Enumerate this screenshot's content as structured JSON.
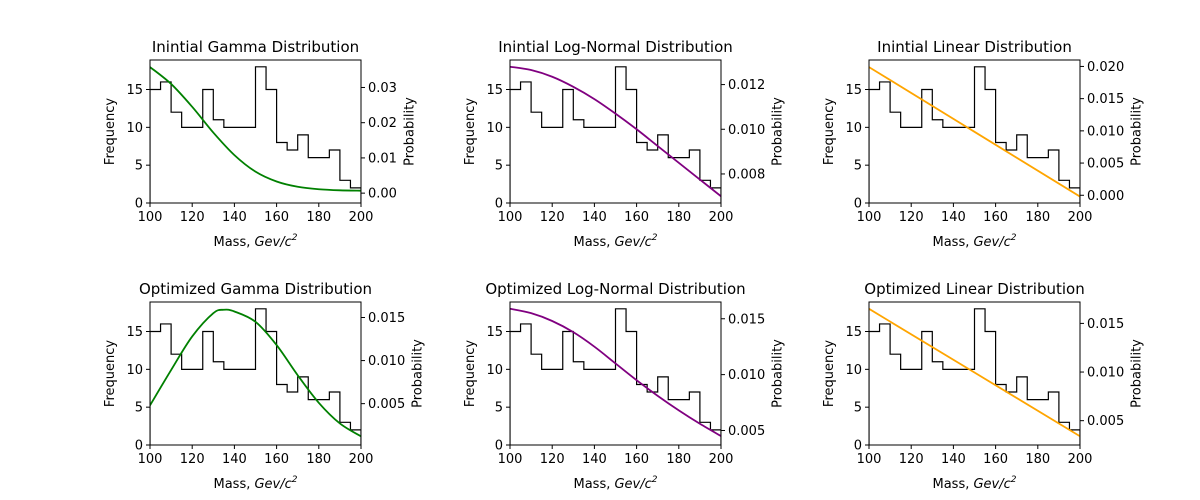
{
  "chart_data": [
    {
      "type": "histogram+line",
      "title": "Inintial Gamma Distribution",
      "xlabel": "Mass, ",
      "xlabel_unit": "Gev/c",
      "xlabel_sup": "2",
      "ylabel_left": "Frequency",
      "ylabel_right": "Probability",
      "xlim": [
        100,
        200
      ],
      "ylim_left": [
        0,
        18.9
      ],
      "ylim_right": [
        -0.0028,
        0.0378
      ],
      "xticks": [
        100,
        120,
        140,
        160,
        180,
        200
      ],
      "yticks_left": [
        0,
        5,
        10,
        15
      ],
      "yticks_right": [
        0.0,
        0.01,
        0.02,
        0.03
      ],
      "yticks_right_labels": [
        "0.00",
        "0.01",
        "0.02",
        "0.03"
      ],
      "hist": {
        "edges": [
          100,
          105,
          110,
          115,
          120,
          125,
          130,
          135,
          140,
          145,
          150,
          155,
          160,
          165,
          170,
          175,
          180,
          185,
          190,
          195,
          200
        ],
        "counts": [
          15,
          16,
          12,
          10,
          10,
          15,
          11,
          10,
          10,
          10,
          18,
          15,
          8,
          7,
          9,
          6,
          6,
          7,
          3,
          2
        ]
      },
      "line": {
        "color": "#008000",
        "x": [
          100,
          110,
          120,
          130,
          140,
          150,
          160,
          170,
          180,
          190,
          200
        ],
        "y": [
          0.0358,
          0.031,
          0.0245,
          0.0172,
          0.0108,
          0.0061,
          0.0033,
          0.0018,
          0.0011,
          0.0008,
          0.0007
        ]
      }
    },
    {
      "type": "histogram+line",
      "title": "Inintial Log-Normal Distribution",
      "xlabel": "Mass, ",
      "xlabel_unit": "Gev/c",
      "xlabel_sup": "2",
      "ylabel_left": "Frequency",
      "ylabel_right": "Probability",
      "xlim": [
        100,
        200
      ],
      "ylim_left": [
        0,
        18.9
      ],
      "ylim_right": [
        0.0067,
        0.0131
      ],
      "xticks": [
        100,
        120,
        140,
        160,
        180,
        200
      ],
      "yticks_left": [
        0,
        5,
        10,
        15
      ],
      "yticks_right": [
        0.008,
        0.01,
        0.012
      ],
      "yticks_right_labels": [
        "0.008",
        "0.010",
        "0.012"
      ],
      "hist": {
        "edges": [
          100,
          105,
          110,
          115,
          120,
          125,
          130,
          135,
          140,
          145,
          150,
          155,
          160,
          165,
          170,
          175,
          180,
          185,
          190,
          195,
          200
        ],
        "counts": [
          15,
          16,
          12,
          10,
          10,
          15,
          11,
          10,
          10,
          10,
          18,
          15,
          8,
          7,
          9,
          6,
          6,
          7,
          3,
          2
        ]
      },
      "line": {
        "color": "#800080",
        "x": [
          100,
          110,
          120,
          130,
          140,
          150,
          160,
          170,
          180,
          190,
          200
        ],
        "y": [
          0.0128,
          0.01265,
          0.01235,
          0.0119,
          0.01135,
          0.0107,
          0.01,
          0.00925,
          0.0085,
          0.00775,
          0.007
        ]
      }
    },
    {
      "type": "histogram+line",
      "title": "Inintial Linear Distribution",
      "xlabel": "Mass, ",
      "xlabel_unit": "Gev/c",
      "xlabel_sup": "2",
      "ylabel_left": "Frequency",
      "ylabel_right": "Probability",
      "xlim": [
        100,
        200
      ],
      "ylim_left": [
        0,
        18.9
      ],
      "ylim_right": [
        -0.0012,
        0.021
      ],
      "xticks": [
        100,
        120,
        140,
        160,
        180,
        200
      ],
      "yticks_left": [
        0,
        5,
        10,
        15
      ],
      "yticks_right": [
        0.0,
        0.005,
        0.01,
        0.015,
        0.02
      ],
      "yticks_right_labels": [
        "0.000",
        "0.005",
        "0.010",
        "0.015",
        "0.020"
      ],
      "hist": {
        "edges": [
          100,
          105,
          110,
          115,
          120,
          125,
          130,
          135,
          140,
          145,
          150,
          155,
          160,
          165,
          170,
          175,
          180,
          185,
          190,
          195,
          200
        ],
        "counts": [
          15,
          16,
          12,
          10,
          10,
          15,
          11,
          10,
          10,
          10,
          18,
          15,
          8,
          7,
          9,
          6,
          6,
          7,
          3,
          2
        ]
      },
      "line": {
        "color": "#FFA500",
        "x": [
          100,
          200
        ],
        "y": [
          0.0199,
          -0.0002
        ]
      }
    },
    {
      "type": "histogram+line",
      "title": "Optimized Gamma Distribution",
      "xlabel": "Mass, ",
      "xlabel_unit": "Gev/c",
      "xlabel_sup": "2",
      "ylabel_left": "Frequency",
      "ylabel_right": "Probability",
      "xlim": [
        100,
        200
      ],
      "ylim_left": [
        0,
        18.9
      ],
      "ylim_right": [
        0.0002,
        0.0168
      ],
      "xticks": [
        100,
        120,
        140,
        160,
        180,
        200
      ],
      "yticks_left": [
        0,
        5,
        10,
        15
      ],
      "yticks_right": [
        0.005,
        0.01,
        0.015
      ],
      "yticks_right_labels": [
        "0.005",
        "0.010",
        "0.015"
      ],
      "hist": {
        "edges": [
          100,
          105,
          110,
          115,
          120,
          125,
          130,
          135,
          140,
          145,
          150,
          155,
          160,
          165,
          170,
          175,
          180,
          185,
          190,
          195,
          200
        ],
        "counts": [
          15,
          16,
          12,
          10,
          10,
          15,
          11,
          10,
          10,
          10,
          18,
          15,
          8,
          7,
          9,
          6,
          6,
          7,
          3,
          2
        ]
      },
      "line": {
        "color": "#008000",
        "x": [
          100,
          110,
          120,
          130,
          135,
          140,
          150,
          160,
          170,
          180,
          190,
          200
        ],
        "y": [
          0.0048,
          0.0089,
          0.0128,
          0.0155,
          0.0159,
          0.0157,
          0.0145,
          0.0118,
          0.0083,
          0.0051,
          0.0027,
          0.0012
        ]
      }
    },
    {
      "type": "histogram+line",
      "title": "Optimized Log-Normal Distribution",
      "xlabel": "Mass, ",
      "xlabel_unit": "Gev/c",
      "xlabel_sup": "2",
      "ylabel_left": "Frequency",
      "ylabel_right": "Probability",
      "xlim": [
        100,
        200
      ],
      "ylim_left": [
        0,
        18.9
      ],
      "ylim_right": [
        0.0037,
        0.0165
      ],
      "xticks": [
        100,
        120,
        140,
        160,
        180,
        200
      ],
      "yticks_left": [
        0,
        5,
        10,
        15
      ],
      "yticks_right": [
        0.005,
        0.01,
        0.015
      ],
      "yticks_right_labels": [
        "0.005",
        "0.010",
        "0.015"
      ],
      "hist": {
        "edges": [
          100,
          105,
          110,
          115,
          120,
          125,
          130,
          135,
          140,
          145,
          150,
          155,
          160,
          165,
          170,
          175,
          180,
          185,
          190,
          195,
          200
        ],
        "counts": [
          15,
          16,
          12,
          10,
          10,
          15,
          11,
          10,
          10,
          10,
          18,
          15,
          8,
          7,
          9,
          6,
          6,
          7,
          3,
          2
        ]
      },
      "line": {
        "color": "#800080",
        "x": [
          100,
          110,
          120,
          130,
          140,
          150,
          160,
          170,
          180,
          190,
          200
        ],
        "y": [
          0.0159,
          0.0155,
          0.0148,
          0.0138,
          0.0125,
          0.011,
          0.0095,
          0.0081,
          0.0068,
          0.0056,
          0.0045
        ]
      }
    },
    {
      "type": "histogram+line",
      "title": "Optimized Linear Distribution",
      "xlabel": "Mass, ",
      "xlabel_unit": "Gev/c",
      "xlabel_sup": "2",
      "ylabel_left": "Frequency",
      "ylabel_right": "Probability",
      "xlim": [
        100,
        200
      ],
      "ylim_left": [
        0,
        18.9
      ],
      "ylim_right": [
        0.0025,
        0.0172
      ],
      "xticks": [
        100,
        120,
        140,
        160,
        180,
        200
      ],
      "yticks_left": [
        0,
        5,
        10,
        15
      ],
      "yticks_right": [
        0.005,
        0.01,
        0.015
      ],
      "yticks_right_labels": [
        "0.005",
        "0.010",
        "0.015"
      ],
      "hist": {
        "edges": [
          100,
          105,
          110,
          115,
          120,
          125,
          130,
          135,
          140,
          145,
          150,
          155,
          160,
          165,
          170,
          175,
          180,
          185,
          190,
          195,
          200
        ],
        "counts": [
          15,
          16,
          12,
          10,
          10,
          15,
          11,
          10,
          10,
          10,
          18,
          15,
          8,
          7,
          9,
          6,
          6,
          7,
          3,
          2
        ]
      },
      "line": {
        "color": "#FFA500",
        "x": [
          100,
          200
        ],
        "y": [
          0.0165,
          0.0034
        ]
      }
    }
  ]
}
